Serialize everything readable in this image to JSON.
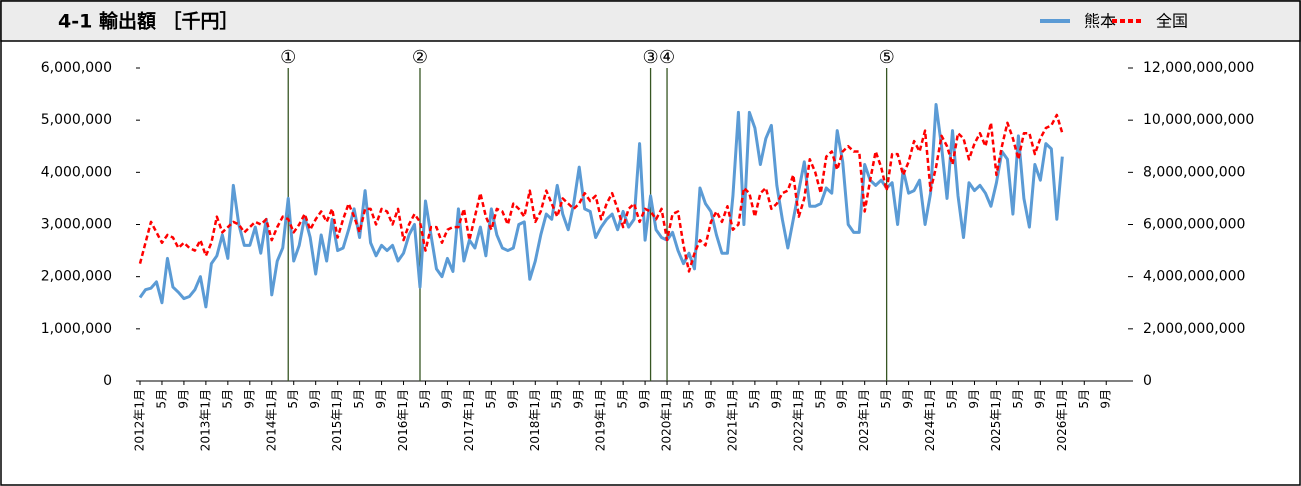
{
  "chart_data": {
    "type": "line",
    "title": "4-1 輸出額 ［千円］",
    "categories": [
      "2012年1月",
      null,
      null,
      null,
      "5月",
      null,
      null,
      null,
      "9月",
      null,
      null,
      null,
      "2013年1月",
      null,
      null,
      null,
      "5月",
      null,
      null,
      null,
      "9月",
      null,
      null,
      null,
      "2014年1月",
      null,
      null,
      null,
      "5月",
      null,
      null,
      null,
      "9月",
      null,
      null,
      null,
      "2015年1月",
      null,
      null,
      null,
      "5月",
      null,
      null,
      null,
      "9月",
      null,
      null,
      null,
      "2016年1月",
      null,
      null,
      null,
      "5月",
      null,
      null,
      null,
      "9月",
      null,
      null,
      null,
      "2017年1月",
      null,
      null,
      null,
      "5月",
      null,
      null,
      null,
      "9月",
      null,
      null,
      null,
      "2018年1月",
      null,
      null,
      null,
      "5月",
      null,
      null,
      null,
      "9月",
      null,
      null,
      null,
      "2019年1月",
      null,
      null,
      null,
      "5月",
      null,
      null,
      null,
      "9月",
      null,
      null,
      null,
      "2020年1月",
      null,
      null,
      null,
      "5月",
      null,
      null,
      null,
      "9月",
      null,
      null,
      null,
      "2021年1月",
      null,
      null,
      null,
      "5月",
      null,
      null,
      null,
      "9月",
      null,
      null,
      null,
      "2022年1月",
      null,
      null,
      null,
      "5月",
      null,
      null,
      null,
      "9月",
      null,
      null,
      null,
      "2023年1月",
      null,
      null,
      null,
      "5月",
      null,
      null,
      null,
      "9月",
      null,
      null,
      null,
      "2024年1月",
      null,
      null,
      null,
      "5月",
      null,
      null,
      null,
      "9月",
      null,
      null,
      null,
      "2025年1月",
      null,
      null,
      null,
      "5月",
      null,
      null,
      null,
      "9月",
      null,
      null,
      null,
      "2026年1月",
      null,
      null,
      null,
      "5月",
      null,
      null,
      null,
      "9月",
      null,
      null,
      null
    ],
    "series": [
      {
        "name": "熊本",
        "color": "#5b9bd5",
        "dash": false,
        "axis": "y",
        "values": [
          1600000,
          1750000,
          1780000,
          1900000,
          1500000,
          2350000,
          1800000,
          1700000,
          1580000,
          1620000,
          1750000,
          2000000,
          1420000,
          2250000,
          2400000,
          2800000,
          2350000,
          3750000,
          3000000,
          2600000,
          2600000,
          2950000,
          2450000,
          3100000,
          1650000,
          2300000,
          2550000,
          3500000,
          2300000,
          2600000,
          3150000,
          2750000,
          2050000,
          2800000,
          2300000,
          3100000,
          2500000,
          2550000,
          2900000,
          3300000,
          2750000,
          3650000,
          2650000,
          2400000,
          2600000,
          2500000,
          2600000,
          2300000,
          2450000,
          2800000,
          3000000,
          1800000,
          3450000,
          2800000,
          2150000,
          2000000,
          2350000,
          2100000,
          3300000,
          2300000,
          2700000,
          2550000,
          2950000,
          2400000,
          3300000,
          2800000,
          2550000,
          2500000,
          2550000,
          3000000,
          3050000,
          1950000,
          2300000,
          2800000,
          3200000,
          3100000,
          3750000,
          3200000,
          2900000,
          3400000,
          4100000,
          3300000,
          3250000,
          2750000,
          2950000,
          3100000,
          3200000,
          2900000,
          3250000,
          2950000,
          3100000,
          4550000,
          2700000,
          3550000,
          2900000,
          2750000,
          2700000,
          2850000,
          2500000,
          2250000,
          2450000,
          2150000,
          3700000,
          3400000,
          3250000,
          2800000,
          2450000,
          2450000,
          3550000,
          5150000,
          3000000,
          5150000,
          4850000,
          4150000,
          4650000,
          4900000,
          3750000,
          3100000,
          2550000,
          3100000,
          3650000,
          4200000,
          3350000,
          3350000,
          3400000,
          3700000,
          3600000,
          4800000,
          4200000,
          3000000,
          2850000,
          2850000,
          4150000,
          3850000,
          3750000,
          3850000,
          3700000,
          3800000,
          3000000,
          4050000,
          3600000,
          3650000,
          3850000,
          3000000,
          3600000,
          5300000,
          4500000,
          3500000,
          4800000,
          3550000,
          2750000,
          3800000,
          3650000,
          3750000,
          3600000,
          3350000,
          3800000,
          4400000,
          4250000,
          3200000,
          4700000,
          3500000,
          2950000,
          4150000,
          3850000,
          4550000,
          4450000,
          3100000,
          4300000,
          null,
          null,
          null,
          null,
          null,
          null,
          null,
          null,
          null,
          null,
          null
        ]
      },
      {
        "name": "全国",
        "color": "#ff0000",
        "dash": true,
        "axis": "y2",
        "values": [
          4500000000,
          5300000000,
          6100000000,
          5700000000,
          5300000000,
          5600000000,
          5500000000,
          5100000000,
          5300000000,
          5100000000,
          5000000000,
          5400000000,
          4800000000,
          5300000000,
          6300000000,
          5700000000,
          5900000000,
          6100000000,
          6000000000,
          5700000000,
          5900000000,
          6100000000,
          6000000000,
          6200000000,
          5400000000,
          5900000000,
          6300000000,
          6200000000,
          5700000000,
          6000000000,
          6400000000,
          5800000000,
          6200000000,
          6500000000,
          6100000000,
          6600000000,
          5500000000,
          6200000000,
          6800000000,
          6300000000,
          5700000000,
          6600000000,
          6600000000,
          6000000000,
          6600000000,
          6500000000,
          6000000000,
          6600000000,
          5400000000,
          6000000000,
          6400000000,
          6100000000,
          5000000000,
          5900000000,
          5900000000,
          5300000000,
          5800000000,
          5900000000,
          5900000000,
          6600000000,
          5400000000,
          6300000000,
          7200000000,
          6300000000,
          5800000000,
          6600000000,
          6500000000,
          6000000000,
          6800000000,
          6600000000,
          6300000000,
          7300000000,
          6100000000,
          6500000000,
          7300000000,
          6800000000,
          6300000000,
          7000000000,
          6800000000,
          6600000000,
          6800000000,
          7200000000,
          6900000000,
          7100000000,
          6200000000,
          6800000000,
          7200000000,
          6600000000,
          5900000000,
          6600000000,
          6800000000,
          6100000000,
          6600000000,
          6500000000,
          6200000000,
          6600000000,
          5400000000,
          6400000000,
          6500000000,
          5200000000,
          4200000000,
          4900000000,
          5400000000,
          5200000000,
          6100000000,
          6500000000,
          6100000000,
          6700000000,
          5800000000,
          6000000000,
          7400000000,
          7200000000,
          6300000000,
          7200000000,
          7400000000,
          6600000000,
          6800000000,
          7200000000,
          7300000000,
          7900000000,
          6300000000,
          7000000000,
          8500000000,
          8000000000,
          7200000000,
          8600000000,
          8800000000,
          8100000000,
          8800000000,
          9000000000,
          8800000000,
          8800000000,
          6500000000,
          7700000000,
          8800000000,
          8200000000,
          7300000000,
          8700000000,
          8700000000,
          7900000000,
          8400000000,
          9200000000,
          8800000000,
          9600000000,
          7300000000,
          8200000000,
          9400000000,
          9000000000,
          8300000000,
          9500000000,
          9300000000,
          8500000000,
          9100000000,
          9500000000,
          9000000000,
          9900000000,
          7900000000,
          9000000000,
          9900000000,
          9300000000,
          8500000000,
          9500000000,
          9500000000,
          8700000000,
          9300000000,
          9700000000,
          9800000000,
          10200000000,
          9500000000,
          null,
          null,
          null,
          null,
          null,
          null,
          null,
          null,
          null,
          null,
          null
        ]
      }
    ],
    "ylim": [
      0,
      6000000
    ],
    "yticks": [
      0,
      {
        "value": 1000000,
        "label": "1,000,000"
      },
      {
        "value": 2000000,
        "label": "2,000,000"
      },
      {
        "value": 3000000,
        "label": "3,000,000"
      },
      {
        "value": 4000000,
        "label": "4,000,000"
      },
      {
        "value": 5000000,
        "label": "5,000,000"
      },
      {
        "value": 6000000,
        "label": "6,000,000"
      }
    ],
    "y2lim": [
      0,
      12000000000
    ],
    "y2ticks": [
      0,
      {
        "value": 2000000000,
        "label": "2,000,000,000"
      },
      {
        "value": 4000000000,
        "label": "4,000,000,000"
      },
      {
        "value": 6000000000,
        "label": "6,000,000,000"
      },
      {
        "value": 8000000000,
        "label": "8,000,000,000"
      },
      {
        "value": 10000000000,
        "label": "10,000,000,000"
      },
      {
        "value": 12000000000,
        "label": "12,000,000,000"
      }
    ],
    "markers": [
      {
        "label": "①",
        "index": 27
      },
      {
        "label": "②",
        "index": 51
      },
      {
        "label": "③",
        "index": 93
      },
      {
        "label": "④",
        "index": 96
      },
      {
        "label": "⑤",
        "index": 136
      }
    ],
    "marker_color": "#375623",
    "legend": "top-right"
  }
}
